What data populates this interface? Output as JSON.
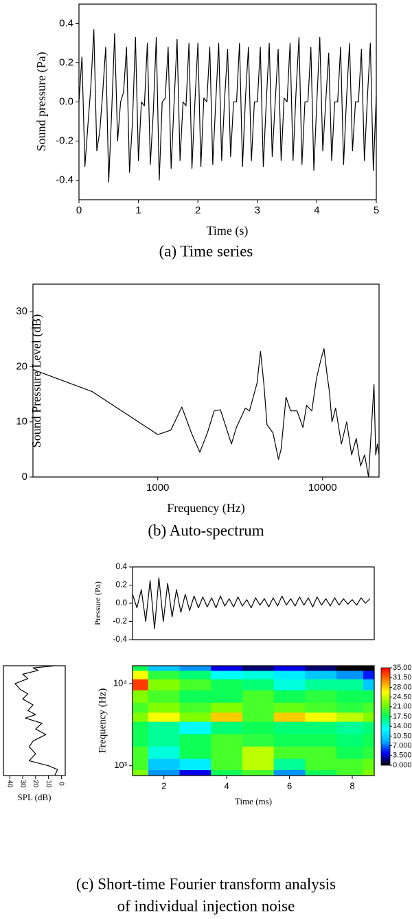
{
  "chart_data": [
    {
      "type": "line",
      "xlabel": "Time (s)",
      "ylabel": "Sound pressure (Pa)",
      "caption": "(a)  Time series",
      "color": "#000000",
      "x": [
        0,
        0.05,
        0.1,
        0.15,
        0.2,
        0.25,
        0.3,
        0.35,
        0.4,
        0.45,
        0.5,
        0.55,
        0.6,
        0.65,
        0.7,
        0.75,
        0.8,
        0.85,
        0.9,
        0.95,
        1,
        1.05,
        1.1,
        1.15,
        1.2,
        1.25,
        1.3,
        1.35,
        1.4,
        1.45,
        1.5,
        1.55,
        1.6,
        1.65,
        1.7,
        1.75,
        1.8,
        1.85,
        1.9,
        1.95,
        2,
        2.05,
        2.1,
        2.15,
        2.2,
        2.25,
        2.3,
        2.35,
        2.4,
        2.45,
        2.5,
        2.55,
        2.6,
        2.65,
        2.7,
        2.75,
        2.8,
        2.85,
        2.9,
        2.95,
        3,
        3.05,
        3.1,
        3.15,
        3.2,
        3.25,
        3.3,
        3.35,
        3.4,
        3.45,
        3.5,
        3.55,
        3.6,
        3.65,
        3.7,
        3.75,
        3.8,
        3.85,
        3.9,
        3.95,
        4,
        4.05,
        4.1,
        4.15,
        4.2,
        4.25,
        4.3,
        4.35,
        4.4,
        4.45,
        4.5,
        4.55,
        4.6,
        4.65,
        4.7,
        4.75,
        4.8,
        4.85,
        4.9,
        4.95,
        5
      ],
      "values": [
        0,
        0.23,
        -0.33,
        -0.12,
        0.08,
        0.37,
        -0.25,
        -0.15,
        0.05,
        0.28,
        -0.41,
        -0.05,
        0.35,
        -0.2,
        0,
        0.05,
        0.28,
        -0.36,
        -0.1,
        0.33,
        -0.3,
        0,
        -0.02,
        0.3,
        -0.32,
        -0.05,
        0.33,
        -0.4,
        0,
        0.02,
        0.28,
        -0.34,
        0,
        0.32,
        -0.3,
        0,
        -0.02,
        0.3,
        -0.34,
        0,
        0.3,
        -0.33,
        0.02,
        0,
        0.28,
        -0.32,
        0,
        0.3,
        -0.3,
        0.02,
        0.27,
        -0.28,
        0,
        0,
        0.3,
        -0.33,
        0.02,
        0.28,
        -0.3,
        0,
        0,
        0.28,
        -0.33,
        0,
        0.3,
        -0.28,
        0,
        0.27,
        -0.3,
        0.02,
        0,
        0.3,
        -0.3,
        0.05,
        0.33,
        -0.32,
        0,
        0,
        0.28,
        -0.35,
        0,
        0.33,
        -0.25,
        0,
        0.25,
        -0.3,
        0,
        0,
        0.28,
        -0.32,
        0.02,
        0.3,
        -0.25,
        0,
        0,
        0.27,
        -0.3,
        0.02,
        0.3,
        -0.35,
        0.03
      ],
      "xlim": [
        0,
        5
      ],
      "xticks": [
        0,
        1,
        2,
        3,
        4,
        5
      ],
      "ylim": [
        -0.5,
        0.5
      ],
      "yticks": [
        -0.4,
        -0.2,
        {
          "value": 0,
          "label": "0.0"
        },
        0.2,
        0.4
      ]
    },
    {
      "type": "line",
      "xlabel": "Frequency (Hz)",
      "ylabel": "Sound Pressure Level (dB)",
      "caption": "(b)  Auto-spectrum",
      "color": "#000000",
      "log_x": true,
      "x": [
        175,
        400,
        1000,
        1200,
        1400,
        1600,
        1800,
        2000,
        2200,
        2400,
        2800,
        3000,
        3400,
        3600,
        4000,
        4200,
        4400,
        4600,
        5000,
        5400,
        5600,
        6000,
        6400,
        7000,
        7600,
        8000,
        8600,
        9200,
        9800,
        10200,
        10600,
        11000,
        11400,
        12000,
        13000,
        14000,
        15000,
        16000,
        17000,
        18000,
        19000,
        20500,
        21000,
        21500,
        22000
      ],
      "values": [
        19.5,
        15.5,
        7.7,
        8.5,
        12.7,
        8,
        4.5,
        8,
        12,
        12.2,
        6,
        9,
        12.5,
        12,
        17,
        22.8,
        17,
        9.5,
        8,
        3.2,
        5,
        14.5,
        12,
        12,
        9,
        13,
        12,
        18,
        21.5,
        23.3,
        19,
        15.5,
        10,
        12.5,
        6,
        10,
        4,
        7,
        2,
        4,
        0,
        16.8,
        4,
        6,
        4
      ],
      "xlim": [
        175,
        22000
      ],
      "xticks": [
        1000,
        10000
      ],
      "ylim": [
        0,
        35
      ],
      "yticks": [
        0,
        10,
        20,
        30
      ]
    },
    {
      "type": "line",
      "ylabel": "Pressure (Pa)",
      "color": "#000000",
      "x": [
        1.0,
        1.14,
        1.28,
        1.42,
        1.56,
        1.7,
        1.84,
        1.98,
        2.12,
        2.26,
        2.4,
        2.54,
        2.68,
        2.82,
        2.96,
        3.1,
        3.24,
        3.38,
        3.52,
        3.66,
        3.8,
        3.94,
        4.08,
        4.22,
        4.36,
        4.5,
        4.64,
        4.78,
        4.92,
        5.06,
        5.2,
        5.34,
        5.48,
        5.62,
        5.76,
        5.9,
        6.04,
        6.18,
        6.32,
        6.46,
        6.6,
        6.74,
        6.88,
        7.02,
        7.16,
        7.3,
        7.44,
        7.58,
        7.72,
        7.86,
        8.0,
        8.14,
        8.28,
        8.42,
        8.56
      ],
      "values": [
        0.1,
        -0.05,
        0.15,
        -0.2,
        0.25,
        -0.28,
        0.28,
        -0.2,
        0.22,
        -0.15,
        0.15,
        -0.1,
        0.1,
        -0.08,
        0.08,
        -0.05,
        0.07,
        -0.04,
        0.06,
        -0.05,
        0.08,
        -0.03,
        0.05,
        -0.04,
        0.07,
        -0.03,
        0.04,
        -0.05,
        0.06,
        -0.02,
        0.05,
        -0.04,
        0.06,
        -0.03,
        0.08,
        -0.02,
        0.05,
        -0.03,
        0.07,
        -0.02,
        0.06,
        -0.04,
        0.07,
        -0.02,
        0.05,
        -0.03,
        0.06,
        -0.02,
        0.05,
        -0.01,
        0.04,
        -0.02,
        0.06,
        0,
        0.05
      ],
      "xlim": [
        1.0,
        8.7
      ],
      "ylim": [
        -0.4,
        0.4
      ],
      "yticks": [
        -0.4,
        -0.2,
        {
          "value": 0,
          "label": "0.0"
        },
        0.2,
        0.4
      ]
    },
    {
      "type": "line",
      "orientation": "vertical",
      "xlabel": "SPL (dB)",
      "color": "#000000",
      "log_y": true,
      "y": [
        770,
        900,
        1000,
        1150,
        1400,
        1700,
        2000,
        2400,
        2800,
        3300,
        3800,
        4200,
        4700,
        5500,
        6500,
        7500,
        8500,
        10000,
        11500,
        13000,
        14500,
        15500,
        16400
      ],
      "values": [
        5,
        3,
        10,
        25,
        20,
        25,
        22,
        12,
        20,
        15,
        28,
        20,
        26,
        22,
        30,
        26,
        32,
        36,
        26,
        30,
        18,
        22,
        6
      ],
      "xlim": [
        45,
        -3
      ],
      "xticks": [
        40,
        30,
        20,
        10,
        0
      ],
      "ylim": [
        760,
        16500
      ]
    },
    {
      "type": "heatmap",
      "xlabel": "Time (ms)",
      "ylabel": "Frequency (Hz)",
      "log_y": true,
      "caption": [
        "(c) Short-time Fourier transform analysis",
        "of individual injection noise"
      ],
      "x": [
        1,
        2,
        3,
        4,
        5,
        6,
        7,
        8,
        8.7
      ],
      "y": [
        800,
        1000,
        1500,
        2000,
        3000,
        4000,
        5000,
        7000,
        10000,
        13000,
        16000
      ],
      "z": [
        [
          22,
          8,
          4,
          18,
          20,
          8,
          18,
          20,
          22
        ],
        [
          20,
          10,
          12,
          20,
          24,
          16,
          20,
          20,
          21
        ],
        [
          20,
          14,
          18,
          20,
          24,
          20,
          20,
          18,
          19
        ],
        [
          18,
          16,
          18,
          20,
          19,
          18,
          18,
          17,
          18
        ],
        [
          18,
          16,
          13,
          17,
          18,
          17,
          17,
          16,
          17
        ],
        [
          22,
          26,
          22,
          28,
          20,
          28,
          26,
          24,
          22
        ],
        [
          20,
          22,
          20,
          22,
          20,
          21,
          20,
          19,
          20
        ],
        [
          22,
          20,
          18,
          18,
          20,
          18,
          19,
          18,
          18
        ],
        [
          33,
          22,
          20,
          18,
          17,
          14,
          16,
          16,
          10
        ],
        [
          26,
          19,
          17,
          13,
          14,
          12,
          10,
          8,
          5
        ],
        [
          18,
          10,
          8,
          4,
          2,
          4,
          2,
          0,
          0
        ]
      ],
      "xlim": [
        1.0,
        8.7
      ],
      "xticks": [
        2,
        4,
        6,
        8
      ],
      "ylim": [
        760,
        16500
      ],
      "yticks": [
        {
          "value": 1000,
          "label": "10³"
        },
        {
          "value": 10000,
          "label": "10⁴"
        }
      ],
      "colormap": [
        "#000000",
        "#0000ff",
        "#00b4ff",
        "#00ffff",
        "#00ff60",
        "#7dff00",
        "#ffff00",
        "#ff8000",
        "#ff0000"
      ],
      "colorbar": {
        "range": [
          0,
          35
        ],
        "ticks": [
          {
            "value": 0,
            "label": "0.000"
          },
          {
            "value": 3.5,
            "label": "3.500"
          },
          {
            "value": 7,
            "label": "7.000"
          },
          {
            "value": 10.5,
            "label": "10.50"
          },
          {
            "value": 14,
            "label": "14.00"
          },
          {
            "value": 17.5,
            "label": "17.50"
          },
          {
            "value": 21,
            "label": "21.00"
          },
          {
            "value": 24.5,
            "label": "24.50"
          },
          {
            "value": 28,
            "label": "28.00"
          },
          {
            "value": 31.5,
            "label": "31.50"
          },
          {
            "value": 35,
            "label": "35.00"
          }
        ]
      }
    }
  ]
}
